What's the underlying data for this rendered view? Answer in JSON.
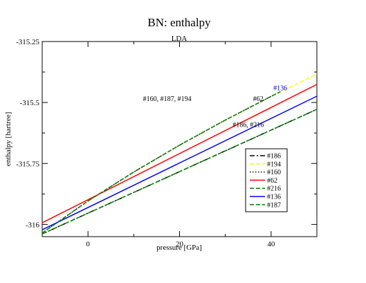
{
  "chart_data": {
    "type": "line",
    "title": "BN: enthalpy",
    "subtitle": "LDA",
    "xlabel": "pressure [GPa]",
    "ylabel": "enthalpy [hartree]",
    "xlim": [
      -10,
      50
    ],
    "ylim": [
      -316.05,
      -315.25
    ],
    "x_ticks": [
      0,
      20,
      40
    ],
    "x_tick_labels": [
      "0",
      "20",
      "40"
    ],
    "y_ticks": [
      -316.0,
      -315.75,
      -315.5,
      -315.25
    ],
    "y_tick_labels": [
      "-316",
      "-315.75",
      "-315.5",
      "-315.25"
    ],
    "grid": false,
    "legend_position": "lower-right",
    "series": [
      {
        "name": "#186",
        "color": "#000000",
        "dash": "dashdot",
        "x": [
          -10,
          50
        ],
        "y": [
          -316.039,
          -315.528
        ]
      },
      {
        "name": "#194",
        "color": "#ffff00",
        "dash": "dash",
        "x": [
          -10,
          0,
          10,
          20,
          30,
          40,
          50
        ],
        "y": [
          -316.035,
          -315.904,
          -315.785,
          -315.675,
          -315.572,
          -315.475,
          -315.383
        ]
      },
      {
        "name": "#160",
        "color": "#000000",
        "dash": "dot",
        "x": [
          -10,
          0,
          10,
          20,
          30,
          40,
          42
        ],
        "y": [
          -316.035,
          -315.904,
          -315.785,
          -315.675,
          -315.572,
          -315.475,
          -315.456
        ]
      },
      {
        "name": "#62",
        "color": "#ff0000",
        "dash": "solid",
        "x": [
          -10,
          50
        ],
        "y": [
          -315.993,
          -315.426
        ]
      },
      {
        "name": "#216",
        "color": "#008000",
        "dash": "dash",
        "x": [
          -10,
          50
        ],
        "y": [
          -316.039,
          -315.528
        ]
      },
      {
        "name": "#136",
        "color": "#0000ff",
        "dash": "solid",
        "x": [
          -10,
          50
        ],
        "y": [
          -316.022,
          -315.474
        ]
      },
      {
        "name": "#187",
        "color": "#008000",
        "dash": "dash",
        "x": [
          -10,
          0,
          10,
          20,
          30,
          40,
          42
        ],
        "y": [
          -316.035,
          -315.904,
          -315.785,
          -315.675,
          -315.572,
          -315.475,
          -315.456
        ]
      }
    ],
    "annotations": [
      {
        "text": "#160, #187, #194",
        "x": 17.3,
        "y": -315.494,
        "color": "#000000"
      },
      {
        "text": "#62",
        "x": 37.2,
        "y": -315.494,
        "color": "#000000"
      },
      {
        "text": "#136",
        "x": 42.0,
        "y": -315.45,
        "color": "#0000cc"
      },
      {
        "text": "#186, #216",
        "x": 35.0,
        "y": -315.6,
        "color": "#000000"
      }
    ]
  }
}
